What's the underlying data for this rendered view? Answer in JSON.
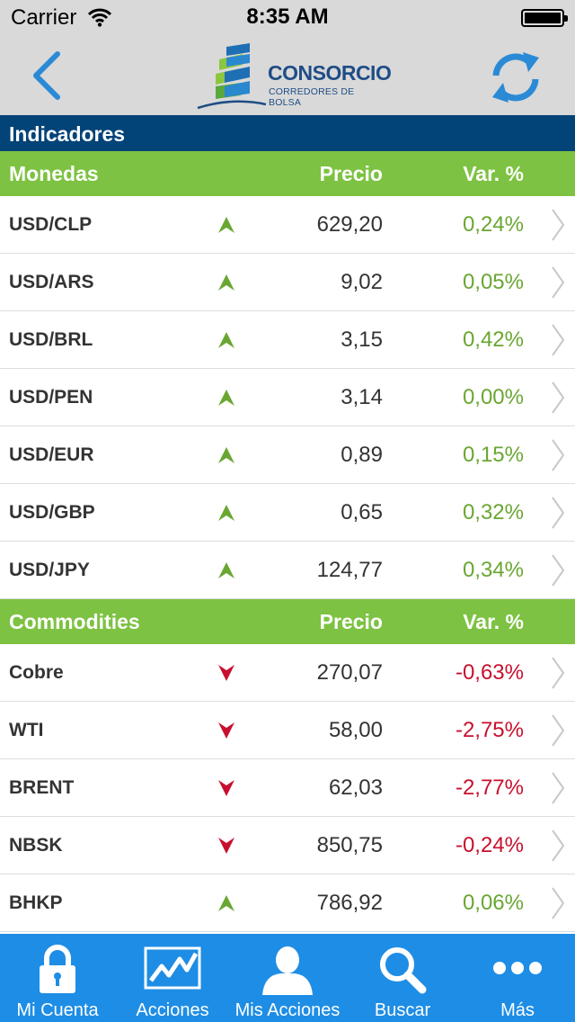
{
  "status_bar": {
    "carrier": "Carrier",
    "time": "8:35 AM"
  },
  "header": {
    "logo_name": "CONSORCIO",
    "logo_subtitle": "CORREDORES DE BOLSA"
  },
  "section_title": "Indicadores",
  "colors": {
    "green": "#7dc242",
    "navy": "#024378",
    "up": "#6aa632",
    "down": "#c8102e",
    "tab_bar": "#1e8de5",
    "nav_icon": "#2b8ad6"
  },
  "groups": [
    {
      "title": "Monedas",
      "price_header": "Precio",
      "var_header": "Var. %",
      "rows": [
        {
          "name": "USD/CLP",
          "trend": "up",
          "price": "629,20",
          "var": "0,24%"
        },
        {
          "name": "USD/ARS",
          "trend": "up",
          "price": "9,02",
          "var": "0,05%"
        },
        {
          "name": "USD/BRL",
          "trend": "up",
          "price": "3,15",
          "var": "0,42%"
        },
        {
          "name": "USD/PEN",
          "trend": "up",
          "price": "3,14",
          "var": "0,00%"
        },
        {
          "name": "USD/EUR",
          "trend": "up",
          "price": "0,89",
          "var": "0,15%"
        },
        {
          "name": "USD/GBP",
          "trend": "up",
          "price": "0,65",
          "var": "0,32%"
        },
        {
          "name": "USD/JPY",
          "trend": "up",
          "price": "124,77",
          "var": "0,34%"
        }
      ]
    },
    {
      "title": "Commodities",
      "price_header": "Precio",
      "var_header": "Var. %",
      "rows": [
        {
          "name": "Cobre",
          "trend": "down",
          "price": "270,07",
          "var": "-0,63%"
        },
        {
          "name": "WTI",
          "trend": "down",
          "price": "58,00",
          "var": "-2,75%"
        },
        {
          "name": "BRENT",
          "trend": "down",
          "price": "62,03",
          "var": "-2,77%"
        },
        {
          "name": "NBSK",
          "trend": "down",
          "price": "850,75",
          "var": "-0,24%"
        },
        {
          "name": "BHKP",
          "trend": "up",
          "price": "786,92",
          "var": "0,06%"
        }
      ]
    }
  ],
  "tabs": [
    {
      "label": "Mi Cuenta",
      "icon": "lock-icon"
    },
    {
      "label": "Acciones",
      "icon": "chart-icon"
    },
    {
      "label": "Mis Acciones",
      "icon": "user-icon"
    },
    {
      "label": "Buscar",
      "icon": "search-icon"
    },
    {
      "label": "Más",
      "icon": "more-icon"
    }
  ]
}
